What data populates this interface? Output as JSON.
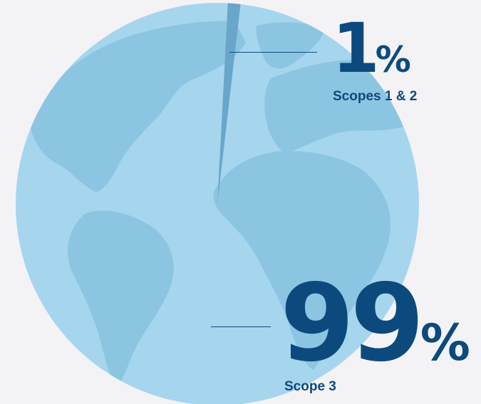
{
  "chart_data": {
    "type": "pie",
    "slices": [
      {
        "label": "Scopes 1 & 2",
        "value": 1,
        "display": "1",
        "unit": "%",
        "color": "#6aa6c9"
      },
      {
        "label": "Scope 3",
        "value": 99,
        "display": "99",
        "unit": "%",
        "color": "#a6d5ee"
      }
    ],
    "start_angle_deg": 3,
    "background": "#f3f3f5",
    "land_color": "#8cc5e2",
    "value_color": "#0c4a7d",
    "legend": "none"
  }
}
